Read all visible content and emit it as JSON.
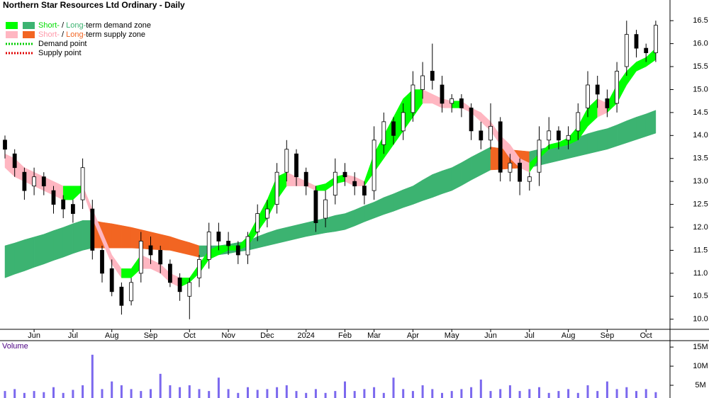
{
  "chart_data": {
    "type": "candlestick",
    "title": "Northern Star Resources Ltd Ordinary - Daily",
    "legend": [
      {
        "swatches": [
          "#00ff00",
          "#3cb371"
        ],
        "parts": [
          "Short-",
          " / ",
          "Long-",
          "term demand zone"
        ],
        "part_colors": [
          "#00dd00",
          "#000000",
          "#3cb371",
          "#000000"
        ]
      },
      {
        "swatches": [
          "#ffb6c1",
          "#f26522"
        ],
        "parts": [
          "Short-",
          " / ",
          "Long-",
          "term supply zone"
        ],
        "part_colors": [
          "#ff9aaa",
          "#000000",
          "#f26522",
          "#000000"
        ]
      },
      {
        "line_color": "#00cc00",
        "parts": [
          "Demand point"
        ],
        "part_colors": [
          "#000000"
        ]
      },
      {
        "line_color": "#e00000",
        "parts": [
          "Supply point"
        ],
        "part_colors": [
          "#000000"
        ]
      }
    ],
    "categories": [
      null,
      null,
      null,
      "Jun",
      null,
      null,
      null,
      "Jul",
      null,
      null,
      null,
      "Aug",
      null,
      null,
      null,
      "Sep",
      null,
      null,
      null,
      "Oct",
      null,
      null,
      null,
      "Nov",
      null,
      null,
      null,
      "Dec",
      null,
      null,
      null,
      "2024",
      null,
      null,
      null,
      "Feb",
      null,
      null,
      "Mar",
      null,
      null,
      null,
      "Apr",
      null,
      null,
      null,
      "May",
      null,
      null,
      null,
      "Jun",
      null,
      null,
      null,
      "Jul",
      null,
      null,
      null,
      "Aug",
      null,
      null,
      null,
      "Sep",
      null,
      null,
      null,
      "Oct",
      null
    ],
    "open": [
      13.9,
      13.6,
      13.2,
      12.9,
      13.1,
      12.8,
      12.6,
      12.5,
      12.6,
      12.4,
      11.5,
      11.1,
      10.7,
      10.4,
      11.0,
      11.6,
      11.5,
      11.2,
      10.9,
      10.5,
      10.9,
      11.3,
      11.9,
      11.7,
      11.6,
      11.4,
      11.9,
      12.2,
      12.5,
      13.2,
      13.6,
      13.2,
      12.8,
      12.2,
      12.7,
      13.2,
      13.0,
      12.9,
      12.8,
      13.8,
      14.3,
      14.1,
      14.5,
      15.0,
      15.4,
      15.1,
      14.7,
      14.8,
      14.6,
      14.1,
      13.9,
      14.3,
      13.2,
      13.4,
      13.0,
      13.2,
      13.9,
      14.1,
      13.9,
      14.1,
      14.6,
      15.1,
      14.8,
      14.7,
      15.5,
      16.2,
      15.9,
      15.8
    ],
    "high": [
      14.0,
      13.7,
      13.3,
      13.3,
      13.2,
      12.9,
      12.7,
      12.6,
      13.5,
      12.6,
      11.6,
      11.3,
      10.8,
      10.9,
      11.9,
      11.8,
      11.6,
      11.3,
      11.0,
      10.9,
      11.4,
      12.1,
      12.1,
      11.9,
      11.7,
      11.9,
      12.5,
      12.6,
      13.4,
      13.9,
      13.7,
      13.3,
      12.9,
      12.8,
      13.5,
      13.4,
      13.2,
      13.0,
      14.2,
      14.5,
      14.4,
      14.7,
      15.4,
      15.6,
      16.0,
      15.3,
      14.9,
      14.9,
      14.7,
      14.3,
      14.7,
      14.4,
      13.6,
      13.5,
      13.2,
      14.2,
      14.4,
      14.2,
      14.2,
      14.7,
      15.4,
      15.3,
      15.0,
      15.6,
      16.5,
      16.3,
      16.0,
      16.5
    ],
    "low": [
      13.5,
      13.1,
      12.6,
      12.7,
      12.7,
      12.3,
      12.2,
      12.1,
      12.4,
      11.3,
      10.8,
      10.5,
      10.1,
      10.3,
      10.8,
      11.2,
      11.0,
      10.7,
      10.4,
      10.0,
      10.7,
      11.1,
      11.5,
      11.4,
      11.2,
      11.2,
      11.7,
      12.0,
      12.3,
      13.0,
      12.9,
      12.7,
      11.9,
      12.0,
      12.5,
      12.9,
      12.7,
      12.5,
      12.6,
      13.6,
      13.8,
      13.9,
      14.3,
      14.8,
      15.0,
      14.5,
      14.5,
      14.4,
      13.9,
      13.7,
      13.7,
      13.0,
      13.0,
      12.7,
      12.8,
      12.9,
      13.7,
      13.7,
      13.7,
      13.9,
      14.4,
      14.6,
      14.4,
      14.5,
      15.3,
      15.7,
      15.6,
      15.6
    ],
    "close": [
      13.7,
      13.3,
      12.8,
      13.1,
      12.9,
      12.5,
      12.4,
      12.3,
      13.3,
      11.5,
      11.0,
      10.6,
      10.3,
      10.8,
      11.7,
      11.4,
      11.2,
      10.8,
      10.6,
      10.8,
      11.3,
      11.9,
      11.7,
      11.6,
      11.4,
      11.8,
      12.3,
      12.4,
      13.2,
      13.7,
      13.1,
      12.9,
      12.1,
      12.6,
      13.2,
      13.1,
      12.9,
      12.7,
      13.9,
      14.3,
      14.0,
      14.5,
      15.1,
      15.3,
      15.2,
      14.7,
      14.8,
      14.6,
      14.1,
      13.9,
      14.2,
      13.2,
      13.4,
      13.0,
      13.1,
      13.9,
      14.1,
      13.9,
      14.0,
      14.5,
      15.1,
      14.9,
      14.6,
      15.4,
      16.2,
      15.9,
      15.8,
      16.4
    ],
    "short_term_zone": {
      "lower": [
        13.3,
        13.1,
        13.0,
        12.9,
        12.8,
        12.7,
        12.6,
        12.6,
        12.8,
        12.2,
        11.7,
        11.2,
        10.9,
        10.9,
        11.1,
        11.1,
        11.0,
        10.8,
        10.7,
        10.8,
        11.0,
        11.3,
        11.4,
        11.5,
        11.5,
        11.6,
        11.9,
        12.2,
        12.6,
        12.9,
        12.9,
        12.9,
        12.8,
        12.8,
        12.95,
        13.0,
        12.9,
        12.9,
        13.2,
        13.5,
        13.8,
        14.1,
        14.4,
        14.7,
        14.7,
        14.6,
        14.6,
        14.6,
        14.5,
        14.3,
        14.1,
        13.8,
        13.5,
        13.3,
        13.2,
        13.5,
        13.7,
        13.75,
        13.8,
        13.9,
        14.2,
        14.4,
        14.5,
        14.7,
        15.1,
        15.4,
        15.5,
        15.65
      ],
      "upper": [
        13.6,
        13.5,
        13.3,
        13.2,
        13.1,
        13.0,
        12.9,
        12.9,
        12.9,
        12.4,
        11.9,
        11.4,
        11.1,
        11.1,
        11.4,
        11.3,
        11.2,
        11.0,
        10.9,
        10.9,
        11.2,
        11.5,
        11.6,
        11.6,
        11.6,
        11.8,
        12.2,
        12.6,
        13.1,
        13.2,
        13.1,
        13.0,
        12.9,
        12.95,
        13.1,
        13.15,
        13.1,
        13.0,
        13.6,
        14.0,
        14.4,
        14.8,
        15.0,
        15.0,
        14.9,
        14.8,
        14.75,
        14.75,
        14.6,
        14.5,
        14.3,
        14.0,
        13.8,
        13.5,
        13.4,
        13.6,
        13.8,
        13.85,
        13.95,
        14.2,
        14.6,
        14.8,
        14.7,
        15.1,
        15.4,
        15.6,
        15.7,
        15.9
      ]
    },
    "long_term_zone": {
      "lower": [
        10.9,
        10.98,
        11.05,
        11.13,
        11.2,
        11.28,
        11.35,
        11.43,
        11.5,
        11.55,
        11.55,
        11.55,
        11.55,
        11.55,
        11.54,
        11.52,
        11.51,
        11.5,
        11.45,
        11.4,
        11.35,
        11.38,
        11.4,
        11.43,
        11.47,
        11.5,
        11.55,
        11.6,
        11.65,
        11.7,
        11.75,
        11.8,
        11.84,
        11.88,
        11.91,
        11.95,
        12.03,
        12.12,
        12.2,
        12.28,
        12.35,
        12.43,
        12.5,
        12.58,
        12.65,
        12.73,
        12.8,
        12.91,
        13.03,
        13.14,
        13.25,
        13.26,
        13.28,
        13.29,
        13.3,
        13.35,
        13.4,
        13.45,
        13.5,
        13.55,
        13.6,
        13.65,
        13.7,
        13.77,
        13.84,
        13.91,
        13.98,
        14.05
      ],
      "upper": [
        11.6,
        11.66,
        11.73,
        11.79,
        11.85,
        11.93,
        12.0,
        12.08,
        12.15,
        12.15,
        12.11,
        12.08,
        12.04,
        12.0,
        11.95,
        11.9,
        11.85,
        11.8,
        11.73,
        11.67,
        11.6,
        11.6,
        11.6,
        11.63,
        11.67,
        11.7,
        11.8,
        11.88,
        11.95,
        12.0,
        12.05,
        12.1,
        12.15,
        12.2,
        12.26,
        12.3,
        12.38,
        12.47,
        12.55,
        12.65,
        12.73,
        12.82,
        12.9,
        13.03,
        13.15,
        13.23,
        13.3,
        13.41,
        13.53,
        13.64,
        13.75,
        13.72,
        13.69,
        13.67,
        13.65,
        13.7,
        13.75,
        13.8,
        13.85,
        13.96,
        14.04,
        14.1,
        14.15,
        14.23,
        14.32,
        14.4,
        14.47,
        14.55
      ]
    },
    "zone_colors": {
      "short_demand": "#00ff00",
      "short_supply": "#ffb6c1",
      "long_demand": "#3cb371",
      "long_supply": "#f26522"
    },
    "ylim": [
      9.78,
      16.95
    ],
    "yticks": [
      {
        "value": 10,
        "label": "10.0"
      },
      10.5,
      {
        "value": 11,
        "label": "11.0"
      },
      11.5,
      {
        "value": 12,
        "label": "12.0"
      },
      12.5,
      {
        "value": 13,
        "label": "13.0"
      },
      13.5,
      {
        "value": 14,
        "label": "14.0"
      },
      14.5,
      {
        "value": 15,
        "label": "15.0"
      },
      15.5,
      {
        "value": 16,
        "label": "16.0"
      },
      16.5
    ],
    "volume_title": "Volume",
    "volume": [
      3.5,
      4,
      3,
      3.5,
      3.2,
      4.5,
      3,
      3.8,
      5,
      13,
      4,
      6,
      5,
      4,
      3.5,
      4,
      8,
      5,
      4.5,
      5,
      4,
      3.5,
      7,
      4,
      3,
      4.5,
      3.8,
      4,
      4.5,
      5,
      3.5,
      3,
      4,
      3,
      3.5,
      6,
      3.5,
      4,
      4.5,
      3,
      7,
      4,
      3.5,
      5,
      4,
      3,
      3.5,
      4,
      4.5,
      6.5,
      3.5,
      4,
      5,
      3.5,
      4,
      4.5,
      3,
      3.5,
      4,
      3,
      5,
      3.5,
      6,
      4,
      4.5,
      3.5,
      4,
      3.2
    ],
    "volume_color": "#7b68ee",
    "vlim": [
      1.67,
      16.5
    ],
    "vticks": [
      {
        "value": 5,
        "label": "5M"
      },
      {
        "value": 10,
        "label": "10M"
      },
      {
        "value": 15,
        "label": "15M"
      }
    ]
  }
}
